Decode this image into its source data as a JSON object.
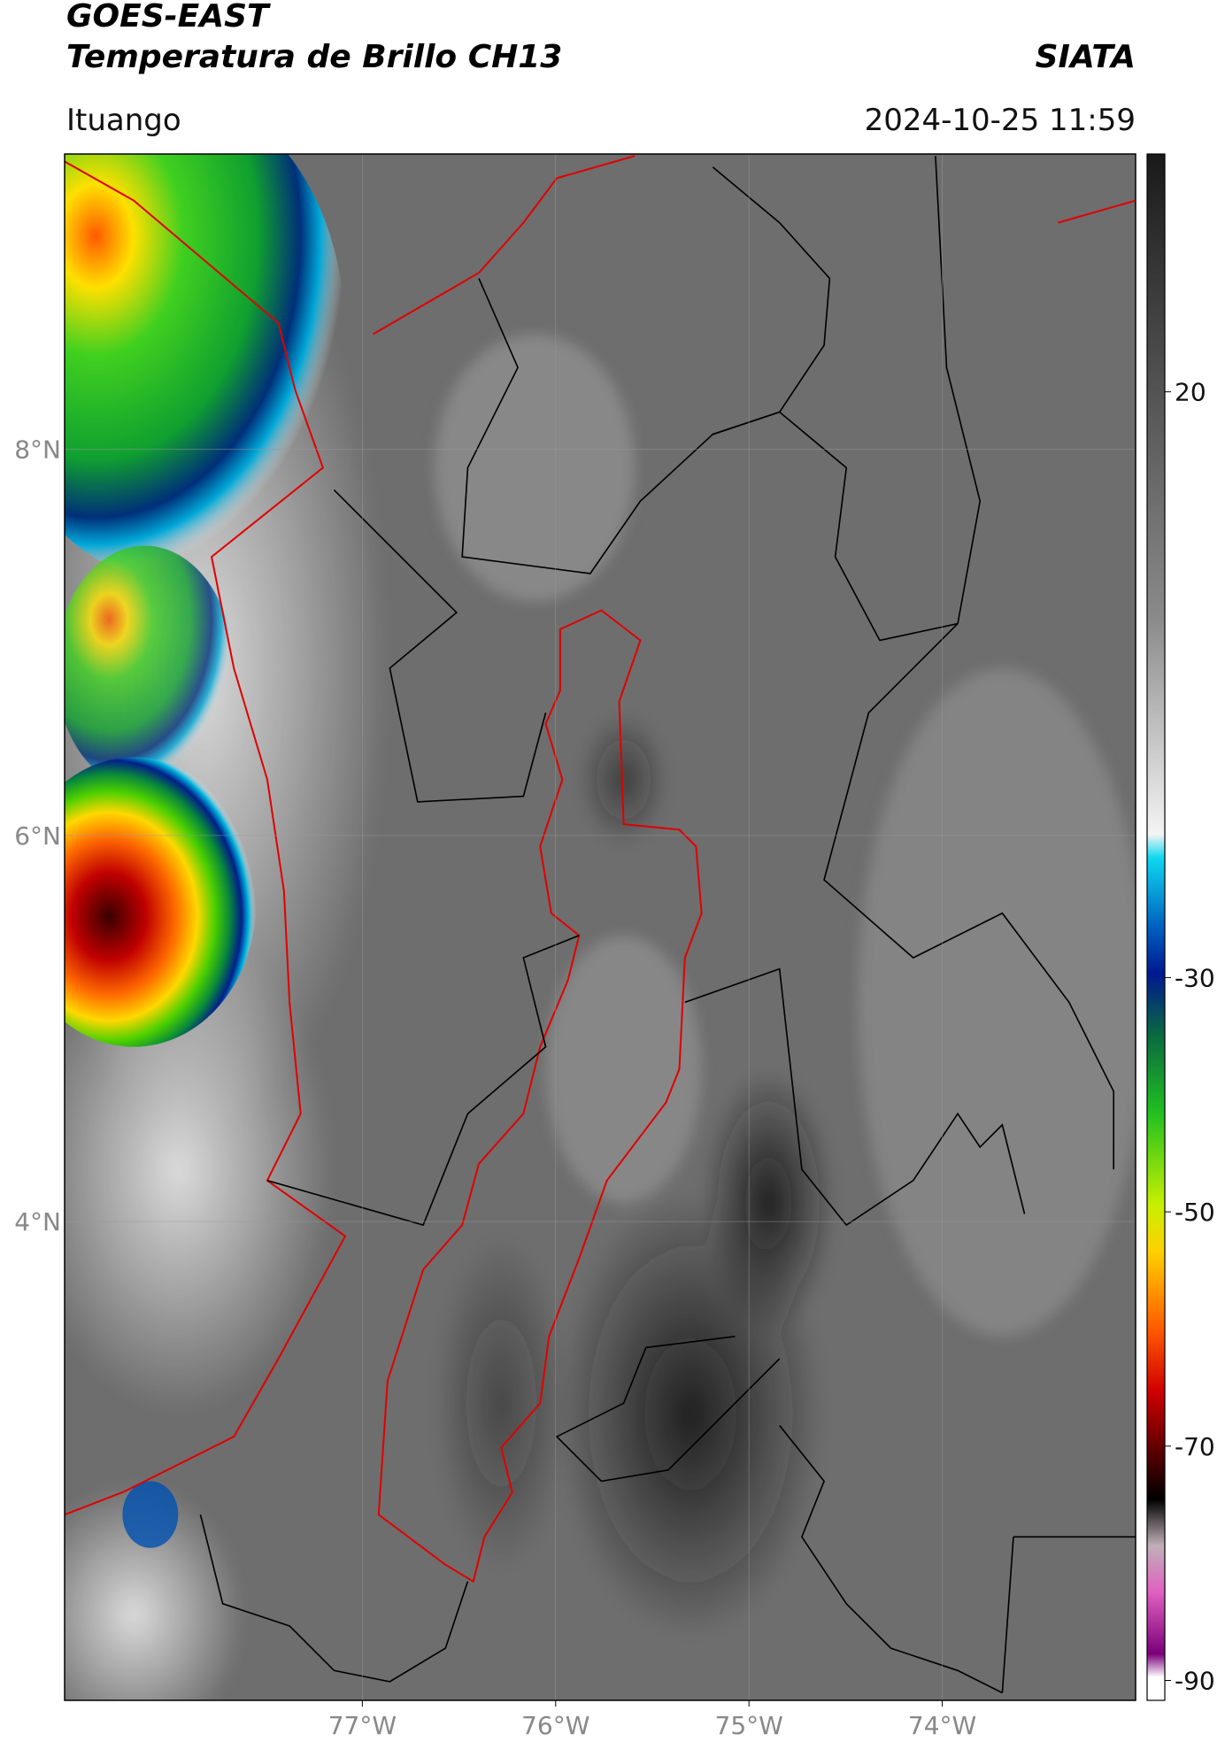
{
  "header": {
    "title": "GOES-EAST",
    "subtitle": "Temperatura de Brillo CH13",
    "source": "SIATA",
    "location": "Ituango",
    "datetime": "2024-10-25 11:59"
  },
  "map": {
    "latlim": [
      1.52,
      9.53
    ],
    "lonlim": [
      -78.54,
      -73.0
    ],
    "lat_ticks": [
      {
        "value": 8,
        "label": "8°N"
      },
      {
        "value": 6,
        "label": "6°N"
      },
      {
        "value": 4,
        "label": "4°N"
      }
    ],
    "lon_ticks": [
      {
        "value": -77,
        "label": "77°W"
      },
      {
        "value": -76,
        "label": "76°W"
      },
      {
        "value": -75,
        "label": "75°W"
      },
      {
        "value": -74,
        "label": "74°W"
      }
    ],
    "grid": true
  },
  "colorbar": {
    "lim": [
      -91.7,
      40.3
    ],
    "ticks": [
      20,
      -30,
      -50,
      -70,
      -90
    ]
  }
}
